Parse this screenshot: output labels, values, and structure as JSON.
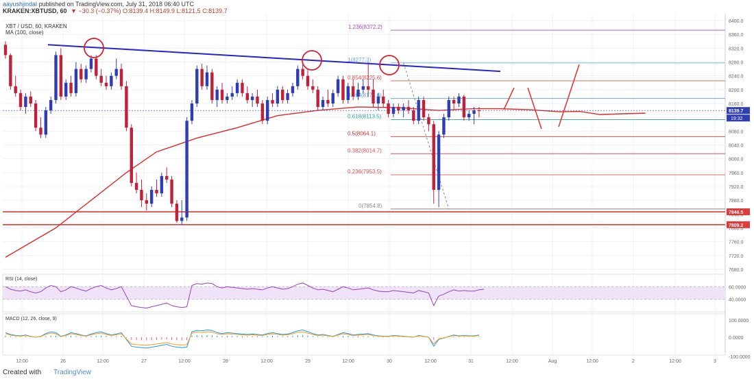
{
  "header": {
    "author": "aayushjindal",
    "published": "published on TradingView.com, July 31, 2018 06:40 UTC",
    "symbol": "KRAKEN:XBTUSD, 60",
    "ohlc": "▼ −30.3 (−0.37%) O:8139.4 H:8149.9 L:8121.5 C:8139.7"
  },
  "footer": {
    "created_with": "Created with",
    "brand": "TradingView"
  },
  "chart_data": {
    "type": "candlestick",
    "title": "XBT / USD, 60, KRAKEN",
    "indicator_label": "MA (100, close)",
    "ylim": [
      7680,
      8400
    ],
    "y_ticks": [
      7680,
      7720,
      7760,
      7800,
      7840,
      7880,
      7920,
      7960,
      8000,
      8040,
      8080,
      8120,
      8160,
      8200,
      8240,
      8280,
      8320,
      8360,
      8400
    ],
    "x_ticks": [
      "12:00",
      "26",
      "12:00",
      "27",
      "12:00",
      "28",
      "12:00",
      "29",
      "12:00",
      "30",
      "12:00",
      "31",
      "12:00",
      "Aug",
      "12:00",
      "2",
      "12:00",
      "3"
    ],
    "last_price": {
      "value": 8139.7,
      "label": "8139.7",
      "countdown": "19:32",
      "color": "#2f3db5"
    },
    "support_levels": [
      {
        "value": 7846.5,
        "label": "7846.5",
        "color": "#e03a3a"
      },
      {
        "value": 7809.2,
        "label": "7809.2",
        "color": "#e03a3a"
      }
    ],
    "fibonacci": [
      {
        "ratio": "1.236",
        "value": 8372.2,
        "label": "1.236(8372.2)",
        "color": "#a64dc8"
      },
      {
        "ratio": "1",
        "value": 8277.3,
        "label": "1(8277.3)",
        "color": "#6ab0d8"
      },
      {
        "ratio": "0.854",
        "value": 8225.6,
        "label": "0.854(8225.6)",
        "color": "#e05050"
      },
      {
        "ratio": "0.764",
        "value": 8174.6,
        "label": "0.764(8174.6)",
        "color": "#4a9fd8"
      },
      {
        "ratio": "0.618",
        "value": 8113.5,
        "label": "0.618(8113.5)",
        "color": "#27a88a"
      },
      {
        "ratio": "0.5",
        "value": 8064.1,
        "label": "0.5(8064.1)",
        "color": "#c0392b"
      },
      {
        "ratio": "0.382",
        "value": 8014.7,
        "label": "0.382(8014.7)",
        "color": "#e05050"
      },
      {
        "ratio": "0.236",
        "value": 7953.5,
        "label": "0.236(7953.5)",
        "color": "#e05050"
      },
      {
        "ratio": "0",
        "value": 7854.8,
        "label": "0(7854.8)",
        "color": "#888888"
      }
    ],
    "trendline": {
      "color": "#2424d0",
      "from": {
        "bar": 0,
        "price": 8330
      },
      "to": {
        "bar": 120,
        "price": 8253
      }
    },
    "projection_color": "#e03a3a",
    "candles": [
      [
        8330,
        8340,
        8290,
        8300
      ],
      [
        8300,
        8305,
        8200,
        8210
      ],
      [
        8210,
        8240,
        8180,
        8190
      ],
      [
        8190,
        8200,
        8140,
        8150
      ],
      [
        8150,
        8190,
        8130,
        8180
      ],
      [
        8180,
        8195,
        8150,
        8160
      ],
      [
        8160,
        8170,
        8080,
        8090
      ],
      [
        8090,
        8120,
        8060,
        8070
      ],
      [
        8070,
        8150,
        8060,
        8140
      ],
      [
        8140,
        8180,
        8130,
        8170
      ],
      [
        8170,
        8310,
        8160,
        8300
      ],
      [
        8300,
        8320,
        8170,
        8180
      ],
      [
        8180,
        8230,
        8170,
        8220
      ],
      [
        8220,
        8240,
        8180,
        8190
      ],
      [
        8190,
        8280,
        8180,
        8260
      ],
      [
        8260,
        8275,
        8220,
        8230
      ],
      [
        8230,
        8270,
        8220,
        8260
      ],
      [
        8260,
        8300,
        8250,
        8290
      ],
      [
        8290,
        8300,
        8230,
        8240
      ],
      [
        8240,
        8260,
        8210,
        8220
      ],
      [
        8220,
        8240,
        8200,
        8210
      ],
      [
        8210,
        8250,
        8200,
        8240
      ],
      [
        8240,
        8290,
        8230,
        8260
      ],
      [
        8260,
        8275,
        8200,
        8210
      ],
      [
        8210,
        8225,
        8080,
        8090
      ],
      [
        8090,
        8100,
        7920,
        7930
      ],
      [
        7930,
        7960,
        7900,
        7910
      ],
      [
        7910,
        7940,
        7860,
        7880
      ],
      [
        7880,
        7900,
        7850,
        7870
      ],
      [
        7870,
        7920,
        7860,
        7910
      ],
      [
        7910,
        7940,
        7890,
        7900
      ],
      [
        7900,
        7960,
        7890,
        7950
      ],
      [
        7950,
        7975,
        7930,
        7940
      ],
      [
        7940,
        7950,
        7860,
        7870
      ],
      [
        7870,
        7880,
        7815,
        7820
      ],
      [
        7820,
        7880,
        7810,
        7830
      ],
      [
        7830,
        8120,
        7820,
        8110
      ],
      [
        8110,
        8170,
        8100,
        8160
      ],
      [
        8160,
        8270,
        8150,
        8260
      ],
      [
        8260,
        8275,
        8200,
        8210
      ],
      [
        8210,
        8270,
        8200,
        8250
      ],
      [
        8250,
        8260,
        8160,
        8170
      ],
      [
        8170,
        8210,
        8150,
        8200
      ],
      [
        8200,
        8220,
        8160,
        8170
      ],
      [
        8170,
        8190,
        8160,
        8180
      ],
      [
        8180,
        8210,
        8170,
        8190
      ],
      [
        8190,
        8230,
        8180,
        8220
      ],
      [
        8220,
        8230,
        8180,
        8190
      ],
      [
        8190,
        8210,
        8160,
        8170
      ],
      [
        8170,
        8190,
        8150,
        8180
      ],
      [
        8180,
        8200,
        8150,
        8160
      ],
      [
        8160,
        8170,
        8100,
        8110
      ],
      [
        8110,
        8180,
        8100,
        8170
      ],
      [
        8170,
        8190,
        8150,
        8160
      ],
      [
        8160,
        8210,
        8150,
        8200
      ],
      [
        8200,
        8210,
        8160,
        8170
      ],
      [
        8170,
        8200,
        8160,
        8190
      ],
      [
        8190,
        8220,
        8180,
        8210
      ],
      [
        8210,
        8270,
        8200,
        8260
      ],
      [
        8260,
        8280,
        8230,
        8240
      ],
      [
        8240,
        8260,
        8200,
        8210
      ],
      [
        8210,
        8230,
        8190,
        8200
      ],
      [
        8200,
        8210,
        8140,
        8150
      ],
      [
        8150,
        8180,
        8140,
        8170
      ],
      [
        8170,
        8200,
        8150,
        8160
      ],
      [
        8160,
        8200,
        8150,
        8190
      ],
      [
        8190,
        8240,
        8180,
        8230
      ],
      [
        8230,
        8240,
        8160,
        8170
      ],
      [
        8170,
        8220,
        8160,
        8210
      ],
      [
        8210,
        8230,
        8170,
        8180
      ],
      [
        8180,
        8220,
        8170,
        8200
      ],
      [
        8200,
        8230,
        8190,
        8210
      ],
      [
        8210,
        8280,
        8180,
        8200
      ],
      [
        8200,
        8230,
        8150,
        8160
      ],
      [
        8160,
        8190,
        8140,
        8180
      ],
      [
        8180,
        8200,
        8150,
        8160
      ],
      [
        8160,
        8170,
        8120,
        8130
      ],
      [
        8130,
        8160,
        8120,
        8150
      ],
      [
        8150,
        8160,
        8130,
        8140
      ],
      [
        8140,
        8160,
        8120,
        8150
      ],
      [
        8150,
        8170,
        8130,
        8140
      ],
      [
        8140,
        8150,
        8100,
        8110
      ],
      [
        8110,
        8180,
        8100,
        8170
      ],
      [
        8170,
        8180,
        8110,
        8120
      ],
      [
        8120,
        8130,
        8080,
        8100
      ],
      [
        8100,
        8110,
        7870,
        7910
      ],
      [
        7910,
        8080,
        7860,
        8070
      ],
      [
        8070,
        8130,
        8060,
        8120
      ],
      [
        8120,
        8180,
        8110,
        8170
      ],
      [
        8170,
        8180,
        8140,
        8160
      ],
      [
        8160,
        8190,
        8150,
        8180
      ],
      [
        8180,
        8185,
        8110,
        8120
      ],
      [
        8120,
        8140,
        8110,
        8130
      ],
      [
        8130,
        8150,
        8100,
        8140
      ],
      [
        8140,
        8150,
        8120,
        8139.7
      ]
    ],
    "ma100": [
      [
        0,
        7715
      ],
      [
        10,
        7800
      ],
      [
        24,
        7960
      ],
      [
        30,
        8020
      ],
      [
        38,
        8060
      ],
      [
        46,
        8090
      ],
      [
        54,
        8125
      ],
      [
        62,
        8140
      ],
      [
        70,
        8150
      ],
      [
        78,
        8148
      ],
      [
        86,
        8140
      ],
      [
        93,
        8145
      ],
      [
        98,
        8145
      ],
      [
        104,
        8142
      ],
      [
        110,
        8136
      ],
      [
        114,
        8137
      ],
      [
        118,
        8128
      ],
      [
        122,
        8130
      ],
      [
        127,
        8132
      ]
    ],
    "rsi": {
      "label": "RSI (14, close)",
      "ylim": [
        20,
        80
      ],
      "levels": [
        40,
        60
      ],
      "ticks": [
        "60.0000",
        "40.0000"
      ],
      "values": [
        60,
        56,
        54,
        53,
        55,
        52,
        50,
        52,
        58,
        62,
        60,
        52,
        55,
        60,
        58,
        55,
        53,
        57,
        60,
        62,
        58,
        55,
        57,
        60,
        45,
        30,
        28,
        27,
        26,
        28,
        30,
        32,
        34,
        30,
        28,
        27,
        28,
        62,
        65,
        64,
        66,
        65,
        60,
        58,
        60,
        59,
        58,
        57,
        56,
        57,
        56,
        55,
        58,
        60,
        58,
        56,
        57,
        60,
        64,
        66,
        62,
        58,
        55,
        56,
        54,
        52,
        56,
        60,
        58,
        55,
        56,
        57,
        58,
        55,
        53,
        52,
        52,
        54,
        53,
        52,
        51,
        50,
        54,
        52,
        50,
        30,
        45,
        48,
        52,
        55,
        53,
        54,
        53,
        53,
        55,
        56
      ]
    },
    "macd": {
      "label": "MACD (12, 26, close, 9)",
      "ylim": [
        -100,
        100
      ],
      "ticks": [
        "100.0000",
        "0.0000",
        "-100.0000"
      ]
    }
  }
}
